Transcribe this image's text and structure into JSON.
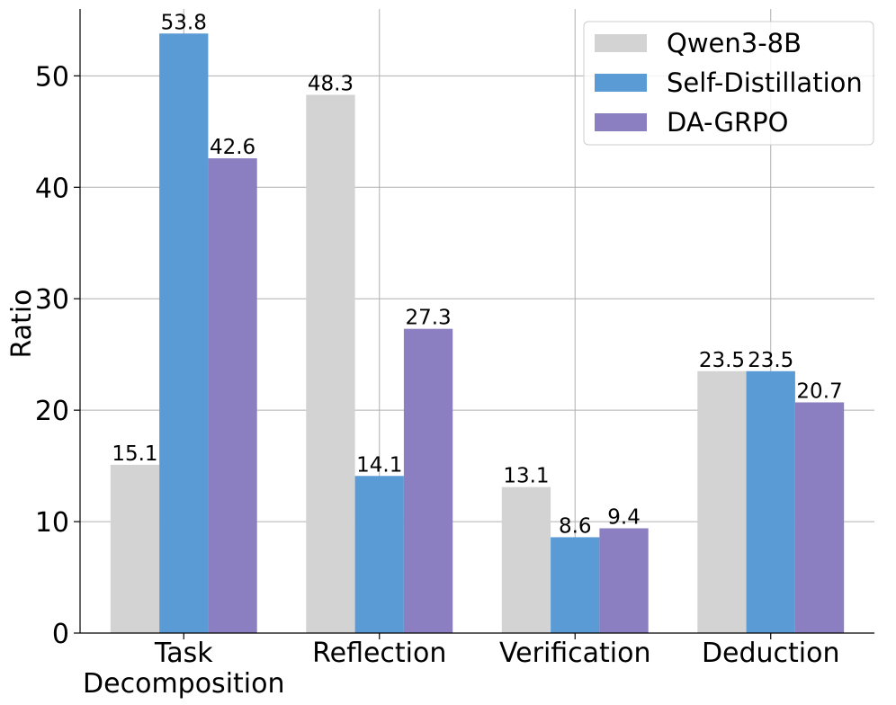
{
  "chart_data": {
    "type": "bar",
    "title": "",
    "xlabel": "",
    "ylabel": "Ratio",
    "ylim": [
      0,
      56
    ],
    "yticks": [
      0,
      10,
      20,
      30,
      40,
      50
    ],
    "grid": true,
    "legend_position": "top-right",
    "categories": [
      [
        "Task",
        "Decomposition"
      ],
      [
        "Reflection"
      ],
      [
        "Verification"
      ],
      [
        "Deduction"
      ]
    ],
    "series": [
      {
        "name": "Qwen3-8B",
        "color": "#d3d3d3",
        "values": [
          15.1,
          48.3,
          13.1,
          23.5
        ]
      },
      {
        "name": "Self-Distillation",
        "color": "#5b9bd5",
        "values": [
          53.8,
          14.1,
          8.6,
          23.5
        ]
      },
      {
        "name": "DA-GRPO",
        "color": "#8c7fc1",
        "values": [
          42.6,
          27.3,
          9.4,
          20.7
        ]
      }
    ]
  }
}
